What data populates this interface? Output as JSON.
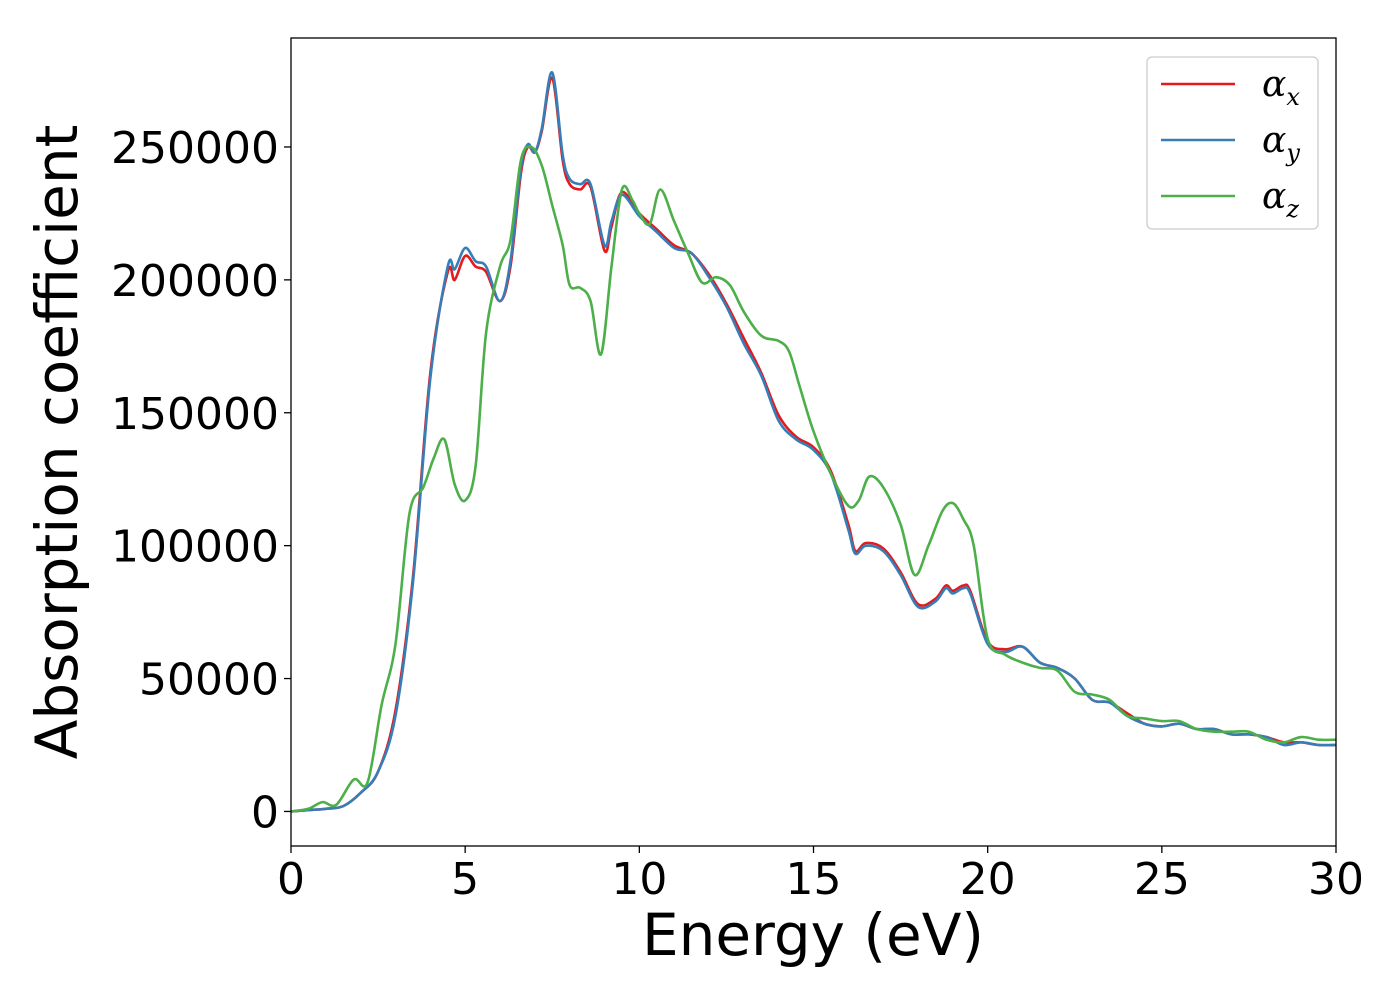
{
  "chart_data": {
    "type": "line",
    "title": "",
    "xlabel": "Energy (eV)",
    "ylabel": "Absorption coefficient",
    "xlim": [
      0,
      30
    ],
    "ylim": [
      -13000,
      291000
    ],
    "xticks": [
      "0",
      "5",
      "10",
      "15",
      "20",
      "25",
      "30"
    ],
    "yticks": [
      "0",
      "50000",
      "100000",
      "150000",
      "200000",
      "250000"
    ],
    "grid": false,
    "legend_position": "top-right",
    "series": [
      {
        "name": "αx",
        "legend_symbol": "α",
        "legend_subscript": "x",
        "color": "#e41a1c",
        "x": [
          0,
          0.5,
          1.0,
          1.5,
          2.0,
          2.5,
          3.0,
          3.5,
          4.0,
          4.5,
          4.7,
          5.0,
          5.3,
          5.6,
          6.0,
          6.3,
          6.6,
          6.8,
          7.0,
          7.2,
          7.5,
          7.8,
          8.0,
          8.3,
          8.6,
          9.0,
          9.2,
          9.5,
          10.0,
          10.5,
          11.0,
          11.5,
          12.0,
          12.5,
          13.0,
          13.5,
          14.0,
          14.5,
          15.0,
          15.5,
          16.0,
          16.2,
          16.5,
          17.0,
          17.5,
          18.0,
          18.5,
          18.8,
          19.0,
          19.3,
          19.5,
          20.0,
          20.5,
          21.0,
          21.5,
          22.0,
          22.5,
          23.0,
          23.5,
          24.0,
          24.5,
          25.0,
          25.5,
          26.0,
          26.5,
          27.0,
          27.5,
          28.0,
          28.5,
          29.0,
          29.5,
          30.0
        ],
        "values": [
          0,
          500,
          1000,
          2000,
          7000,
          15000,
          38000,
          88000,
          165000,
          203000,
          200000,
          209000,
          205000,
          203000,
          192000,
          205000,
          240000,
          250000,
          248000,
          256000,
          276000,
          245000,
          236000,
          234000,
          235000,
          211000,
          220000,
          233000,
          225000,
          219000,
          213000,
          210000,
          202000,
          191000,
          178000,
          165000,
          149000,
          141000,
          137000,
          128000,
          108000,
          98000,
          101000,
          99000,
          90000,
          78000,
          80000,
          85000,
          83000,
          85000,
          83000,
          64000,
          61000,
          62000,
          56000,
          54000,
          50000,
          42000,
          41000,
          37000,
          33000,
          32000,
          33000,
          31000,
          31000,
          29000,
          29000,
          28000,
          26000,
          26000,
          25000,
          25000
        ]
      },
      {
        "name": "αy",
        "legend_symbol": "α",
        "legend_subscript": "y",
        "color": "#377eb8",
        "x": [
          0,
          0.5,
          1.0,
          1.5,
          2.0,
          2.5,
          3.0,
          3.5,
          4.0,
          4.5,
          4.7,
          5.0,
          5.3,
          5.6,
          6.0,
          6.3,
          6.6,
          6.8,
          7.0,
          7.2,
          7.5,
          7.8,
          8.0,
          8.3,
          8.6,
          9.0,
          9.2,
          9.5,
          10.0,
          10.5,
          11.0,
          11.5,
          12.0,
          12.5,
          13.0,
          13.5,
          14.0,
          14.5,
          15.0,
          15.5,
          16.0,
          16.2,
          16.5,
          17.0,
          17.5,
          18.0,
          18.5,
          18.8,
          19.0,
          19.3,
          19.5,
          20.0,
          20.5,
          21.0,
          21.5,
          22.0,
          22.5,
          23.0,
          23.5,
          24.0,
          24.5,
          25.0,
          25.5,
          26.0,
          26.5,
          27.0,
          27.5,
          28.0,
          28.5,
          29.0,
          29.5,
          30.0
        ],
        "values": [
          0,
          500,
          1000,
          2000,
          7000,
          15000,
          36000,
          86000,
          163000,
          205000,
          204000,
          212000,
          207000,
          205000,
          192000,
          207000,
          242000,
          251000,
          248000,
          257000,
          278000,
          247000,
          238000,
          236000,
          236000,
          213000,
          222000,
          232000,
          224000,
          218000,
          212000,
          210000,
          201000,
          190000,
          176000,
          164000,
          147000,
          140000,
          136000,
          127000,
          106000,
          97000,
          100000,
          98000,
          89000,
          77000,
          79000,
          84000,
          82000,
          84000,
          82000,
          63000,
          60000,
          62000,
          56000,
          54000,
          50000,
          42000,
          41000,
          36000,
          33000,
          32000,
          33000,
          31000,
          31000,
          29000,
          29000,
          28000,
          25000,
          26000,
          25000,
          25000
        ]
      },
      {
        "name": "αz",
        "legend_symbol": "α",
        "legend_subscript": "z",
        "color": "#4daf4a",
        "x": [
          0,
          0.5,
          0.9,
          1.3,
          1.8,
          2.2,
          2.6,
          3.0,
          3.4,
          3.8,
          4.1,
          4.4,
          4.7,
          5.0,
          5.3,
          5.6,
          6.0,
          6.3,
          6.6,
          6.9,
          7.2,
          7.5,
          7.8,
          8.0,
          8.3,
          8.6,
          8.9,
          9.2,
          9.5,
          9.8,
          10.0,
          10.3,
          10.6,
          11.0,
          11.4,
          11.8,
          12.2,
          12.6,
          13.0,
          13.5,
          14.0,
          14.3,
          14.6,
          15.0,
          15.5,
          16.0,
          16.3,
          16.6,
          17.0,
          17.5,
          17.9,
          18.3,
          18.7,
          19.0,
          19.3,
          19.6,
          20.0,
          20.5,
          21.0,
          21.5,
          22.0,
          22.5,
          23.0,
          23.5,
          24.0,
          24.5,
          25.0,
          25.5,
          26.0,
          26.5,
          27.0,
          27.5,
          28.0,
          28.5,
          29.0,
          29.5,
          30.0
        ],
        "values": [
          0,
          1000,
          3500,
          2500,
          12000,
          11000,
          40000,
          63000,
          112000,
          122000,
          133000,
          140000,
          123000,
          117000,
          130000,
          180000,
          205000,
          215000,
          245000,
          250000,
          243000,
          228000,
          213000,
          198000,
          197000,
          192000,
          172000,
          205000,
          234000,
          230000,
          225000,
          221000,
          234000,
          222000,
          210000,
          199000,
          201000,
          198000,
          188000,
          179000,
          177000,
          173000,
          160000,
          143000,
          127000,
          115000,
          117000,
          126000,
          122000,
          108000,
          89000,
          100000,
          113000,
          116000,
          110000,
          100000,
          65000,
          59000,
          56000,
          54000,
          53000,
          45000,
          44000,
          42000,
          36000,
          35000,
          34000,
          34000,
          31000,
          30000,
          30000,
          30000,
          27000,
          26000,
          28000,
          27000,
          27000
        ]
      }
    ]
  }
}
